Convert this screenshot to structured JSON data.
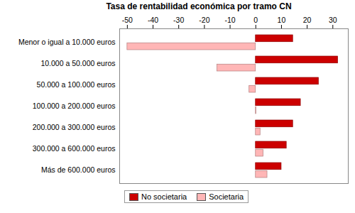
{
  "chart_data": {
    "type": "bar",
    "orientation": "horizontal",
    "title": "Tasa de rentabilidad económica por tramo CN",
    "categories": [
      "Menor o igual a 10.000 euros",
      "10.000 a 50.000 euros",
      "50.000 a 100.000 euros",
      "100.000 a 200.000 euros",
      "200.000 a 300.000 euros",
      "300.000 a 600.000 euros",
      "Más de 600.000 euros"
    ],
    "series": [
      {
        "name": "No societaria",
        "color": "#cc0000",
        "values": [
          14.5,
          32,
          24.5,
          17.5,
          14.5,
          12,
          10
        ]
      },
      {
        "name": "Societaria",
        "color": "#ffb6b6",
        "values": [
          -50,
          -15,
          -2.5,
          0.2,
          1.8,
          3,
          4.5
        ]
      }
    ],
    "xlim": [
      -53,
      36
    ],
    "xticks": [
      -50,
      -40,
      -30,
      -20,
      -10,
      0,
      10,
      20,
      30
    ],
    "grid": false,
    "legend": "bottom"
  }
}
